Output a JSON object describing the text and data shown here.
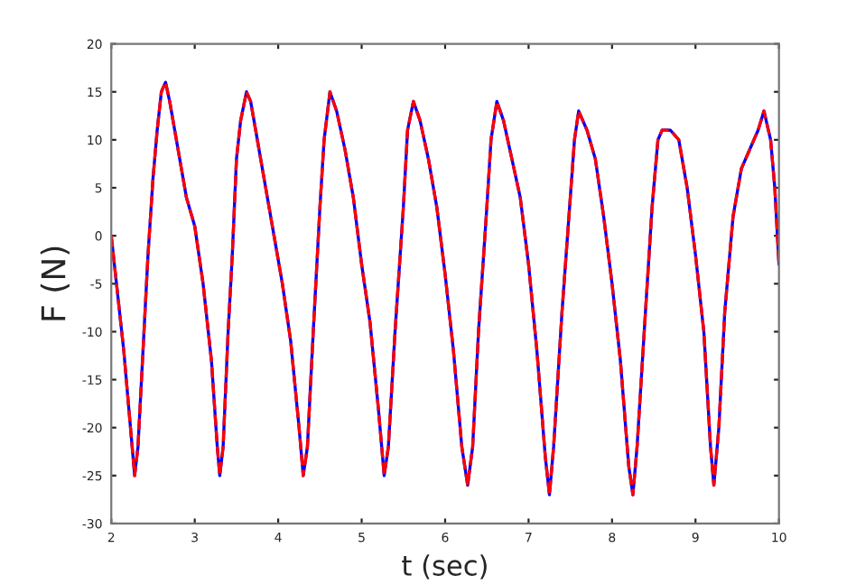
{
  "chart_data": {
    "type": "line",
    "xlabel": "t (sec)",
    "ylabel": "F (N)",
    "x": [
      2.0,
      2.05,
      2.1,
      2.15,
      2.2,
      2.25,
      2.28,
      2.32,
      2.38,
      2.44,
      2.5,
      2.55,
      2.6,
      2.65,
      2.7,
      2.8,
      2.9,
      3.0,
      3.1,
      3.2,
      3.27,
      3.3,
      3.34,
      3.4,
      3.45,
      3.5,
      3.55,
      3.62,
      3.67,
      3.75,
      3.85,
      3.95,
      4.05,
      4.15,
      4.25,
      4.3,
      4.35,
      4.42,
      4.5,
      4.55,
      4.62,
      4.7,
      4.8,
      4.9,
      5.0,
      5.1,
      5.2,
      5.27,
      5.32,
      5.4,
      5.5,
      5.55,
      5.62,
      5.7,
      5.8,
      5.9,
      6.0,
      6.1,
      6.2,
      6.27,
      6.33,
      6.4,
      6.5,
      6.55,
      6.62,
      6.7,
      6.8,
      6.9,
      7.0,
      7.1,
      7.2,
      7.25,
      7.3,
      7.4,
      7.5,
      7.55,
      7.6,
      7.7,
      7.8,
      7.9,
      8.0,
      8.1,
      8.2,
      8.25,
      8.3,
      8.4,
      8.48,
      8.55,
      8.6,
      8.7,
      8.8,
      8.9,
      9.0,
      9.1,
      9.18,
      9.22,
      9.28,
      9.35,
      9.45,
      9.55,
      9.65,
      9.75,
      9.82,
      9.9,
      9.95,
      10.0
    ],
    "series": [
      {
        "color": "#0000ff",
        "line_style": "solid",
        "values": [
          0,
          -4,
          -8,
          -12,
          -17,
          -22,
          -25,
          -22,
          -12,
          -2,
          6,
          11,
          15,
          16,
          14,
          9,
          4,
          1,
          -5,
          -13,
          -22,
          -25,
          -22,
          -10,
          -2,
          8,
          12,
          15,
          14,
          10,
          5,
          0,
          -5,
          -11,
          -20,
          -25,
          -22,
          -10,
          3,
          10,
          15,
          13,
          9,
          4,
          -3,
          -9,
          -18,
          -25,
          -22,
          -10,
          3,
          11,
          14,
          12,
          8,
          3,
          -4,
          -12,
          -22,
          -26,
          -22,
          -10,
          3,
          10,
          14,
          12,
          8,
          4,
          -3,
          -12,
          -23,
          -27,
          -22,
          -8,
          4,
          10,
          13,
          11,
          8,
          2,
          -5,
          -13,
          -24,
          -27,
          -22,
          -8,
          3,
          10,
          11,
          11,
          10,
          5,
          -2,
          -10,
          -22,
          -26,
          -20,
          -8,
          2,
          7,
          9,
          11,
          13,
          10,
          5,
          -3
        ]
      },
      {
        "color": "#ff0000",
        "line_style": "dashed",
        "values": [
          0,
          -4,
          -8,
          -12,
          -17,
          -22,
          -25,
          -22,
          -12,
          -2,
          6,
          11,
          15,
          16,
          14,
          9,
          4,
          1,
          -5,
          -13,
          -22,
          -25,
          -22,
          -10,
          -2,
          8,
          12,
          15,
          14,
          10,
          5,
          0,
          -5,
          -11,
          -20,
          -25,
          -22,
          -10,
          3,
          10,
          15,
          13,
          9,
          4,
          -3,
          -9,
          -18,
          -25,
          -22,
          -10,
          3,
          11,
          14,
          12,
          8,
          3,
          -4,
          -12,
          -22,
          -26,
          -22,
          -10,
          3,
          10,
          14,
          12,
          8,
          4,
          -3,
          -12,
          -23,
          -27,
          -22,
          -8,
          4,
          10,
          13,
          11,
          8,
          2,
          -5,
          -13,
          -24,
          -27,
          -22,
          -8,
          3,
          10,
          11,
          11,
          10,
          5,
          -2,
          -10,
          -22,
          -26,
          -20,
          -8,
          2,
          7,
          9,
          11,
          13,
          10,
          5,
          -3
        ]
      }
    ],
    "xlim": [
      2,
      10
    ],
    "ylim": [
      -30,
      20
    ],
    "xticks": [
      2,
      3,
      4,
      5,
      6,
      7,
      8,
      9,
      10
    ],
    "yticks": [
      -30,
      -25,
      -20,
      -15,
      -10,
      -5,
      0,
      5,
      10,
      15,
      20
    ],
    "grid": false,
    "legend": false
  }
}
